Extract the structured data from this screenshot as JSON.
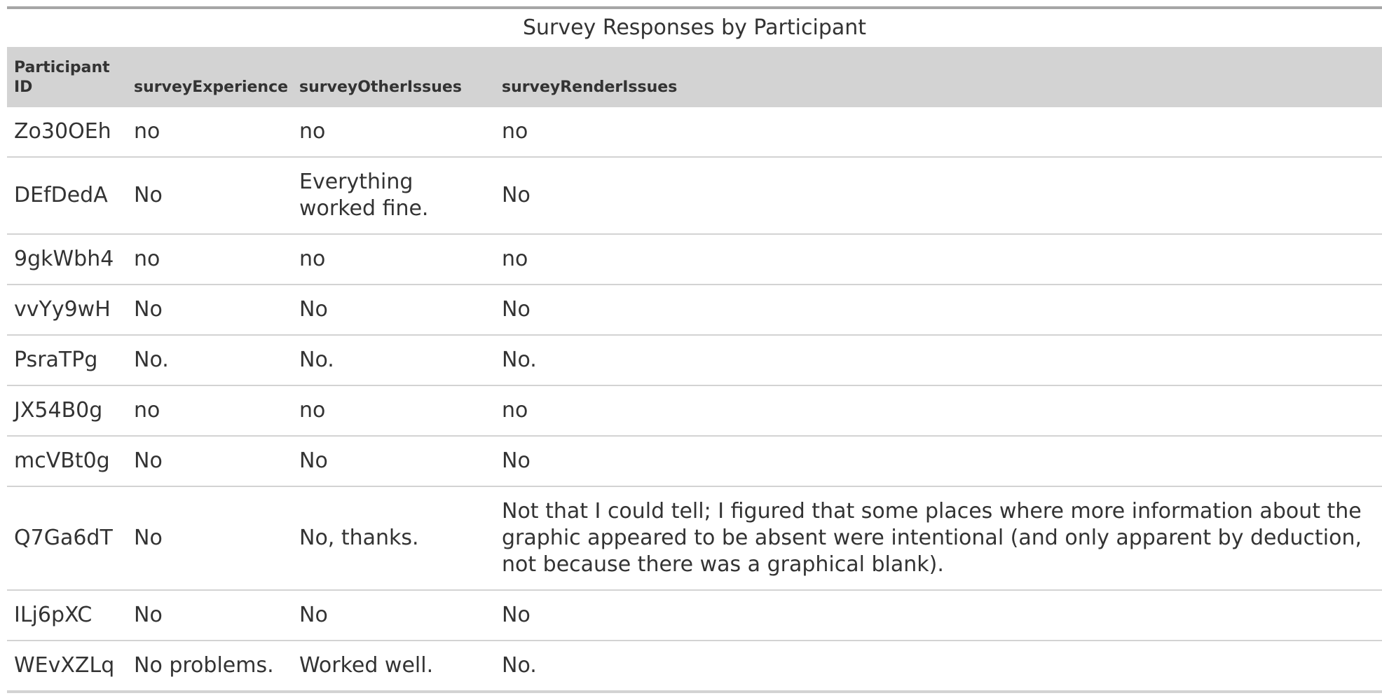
{
  "table": {
    "caption": "Survey Responses by Participant",
    "headers": [
      "Participant ID",
      "surveyExperience",
      "surveyOtherIssues",
      "surveyRenderIssues"
    ],
    "rows": [
      [
        "Zo30OEh",
        "no",
        "no",
        "no"
      ],
      [
        "DEfDedA",
        "No",
        "Everything worked fine.",
        "No"
      ],
      [
        "9gkWbh4",
        "no",
        "no",
        "no"
      ],
      [
        "vvYy9wH",
        "No",
        "No",
        "No"
      ],
      [
        "PsraTPg",
        "No.",
        "No.",
        "No."
      ],
      [
        "JX54B0g",
        "no",
        "no",
        "no"
      ],
      [
        "mcVBt0g",
        "No",
        "No",
        "No"
      ],
      [
        "Q7Ga6dT",
        "No",
        "No, thanks.",
        "Not that I could tell; I figured that some places where more information about the graphic appeared to be absent were intentional (and only apparent by deduction, not because there was a graphical blank)."
      ],
      [
        "ILj6pXC",
        "No",
        "No",
        "No"
      ],
      [
        "WEvXZLq",
        "No problems.",
        "Worked well.",
        "No."
      ]
    ]
  }
}
